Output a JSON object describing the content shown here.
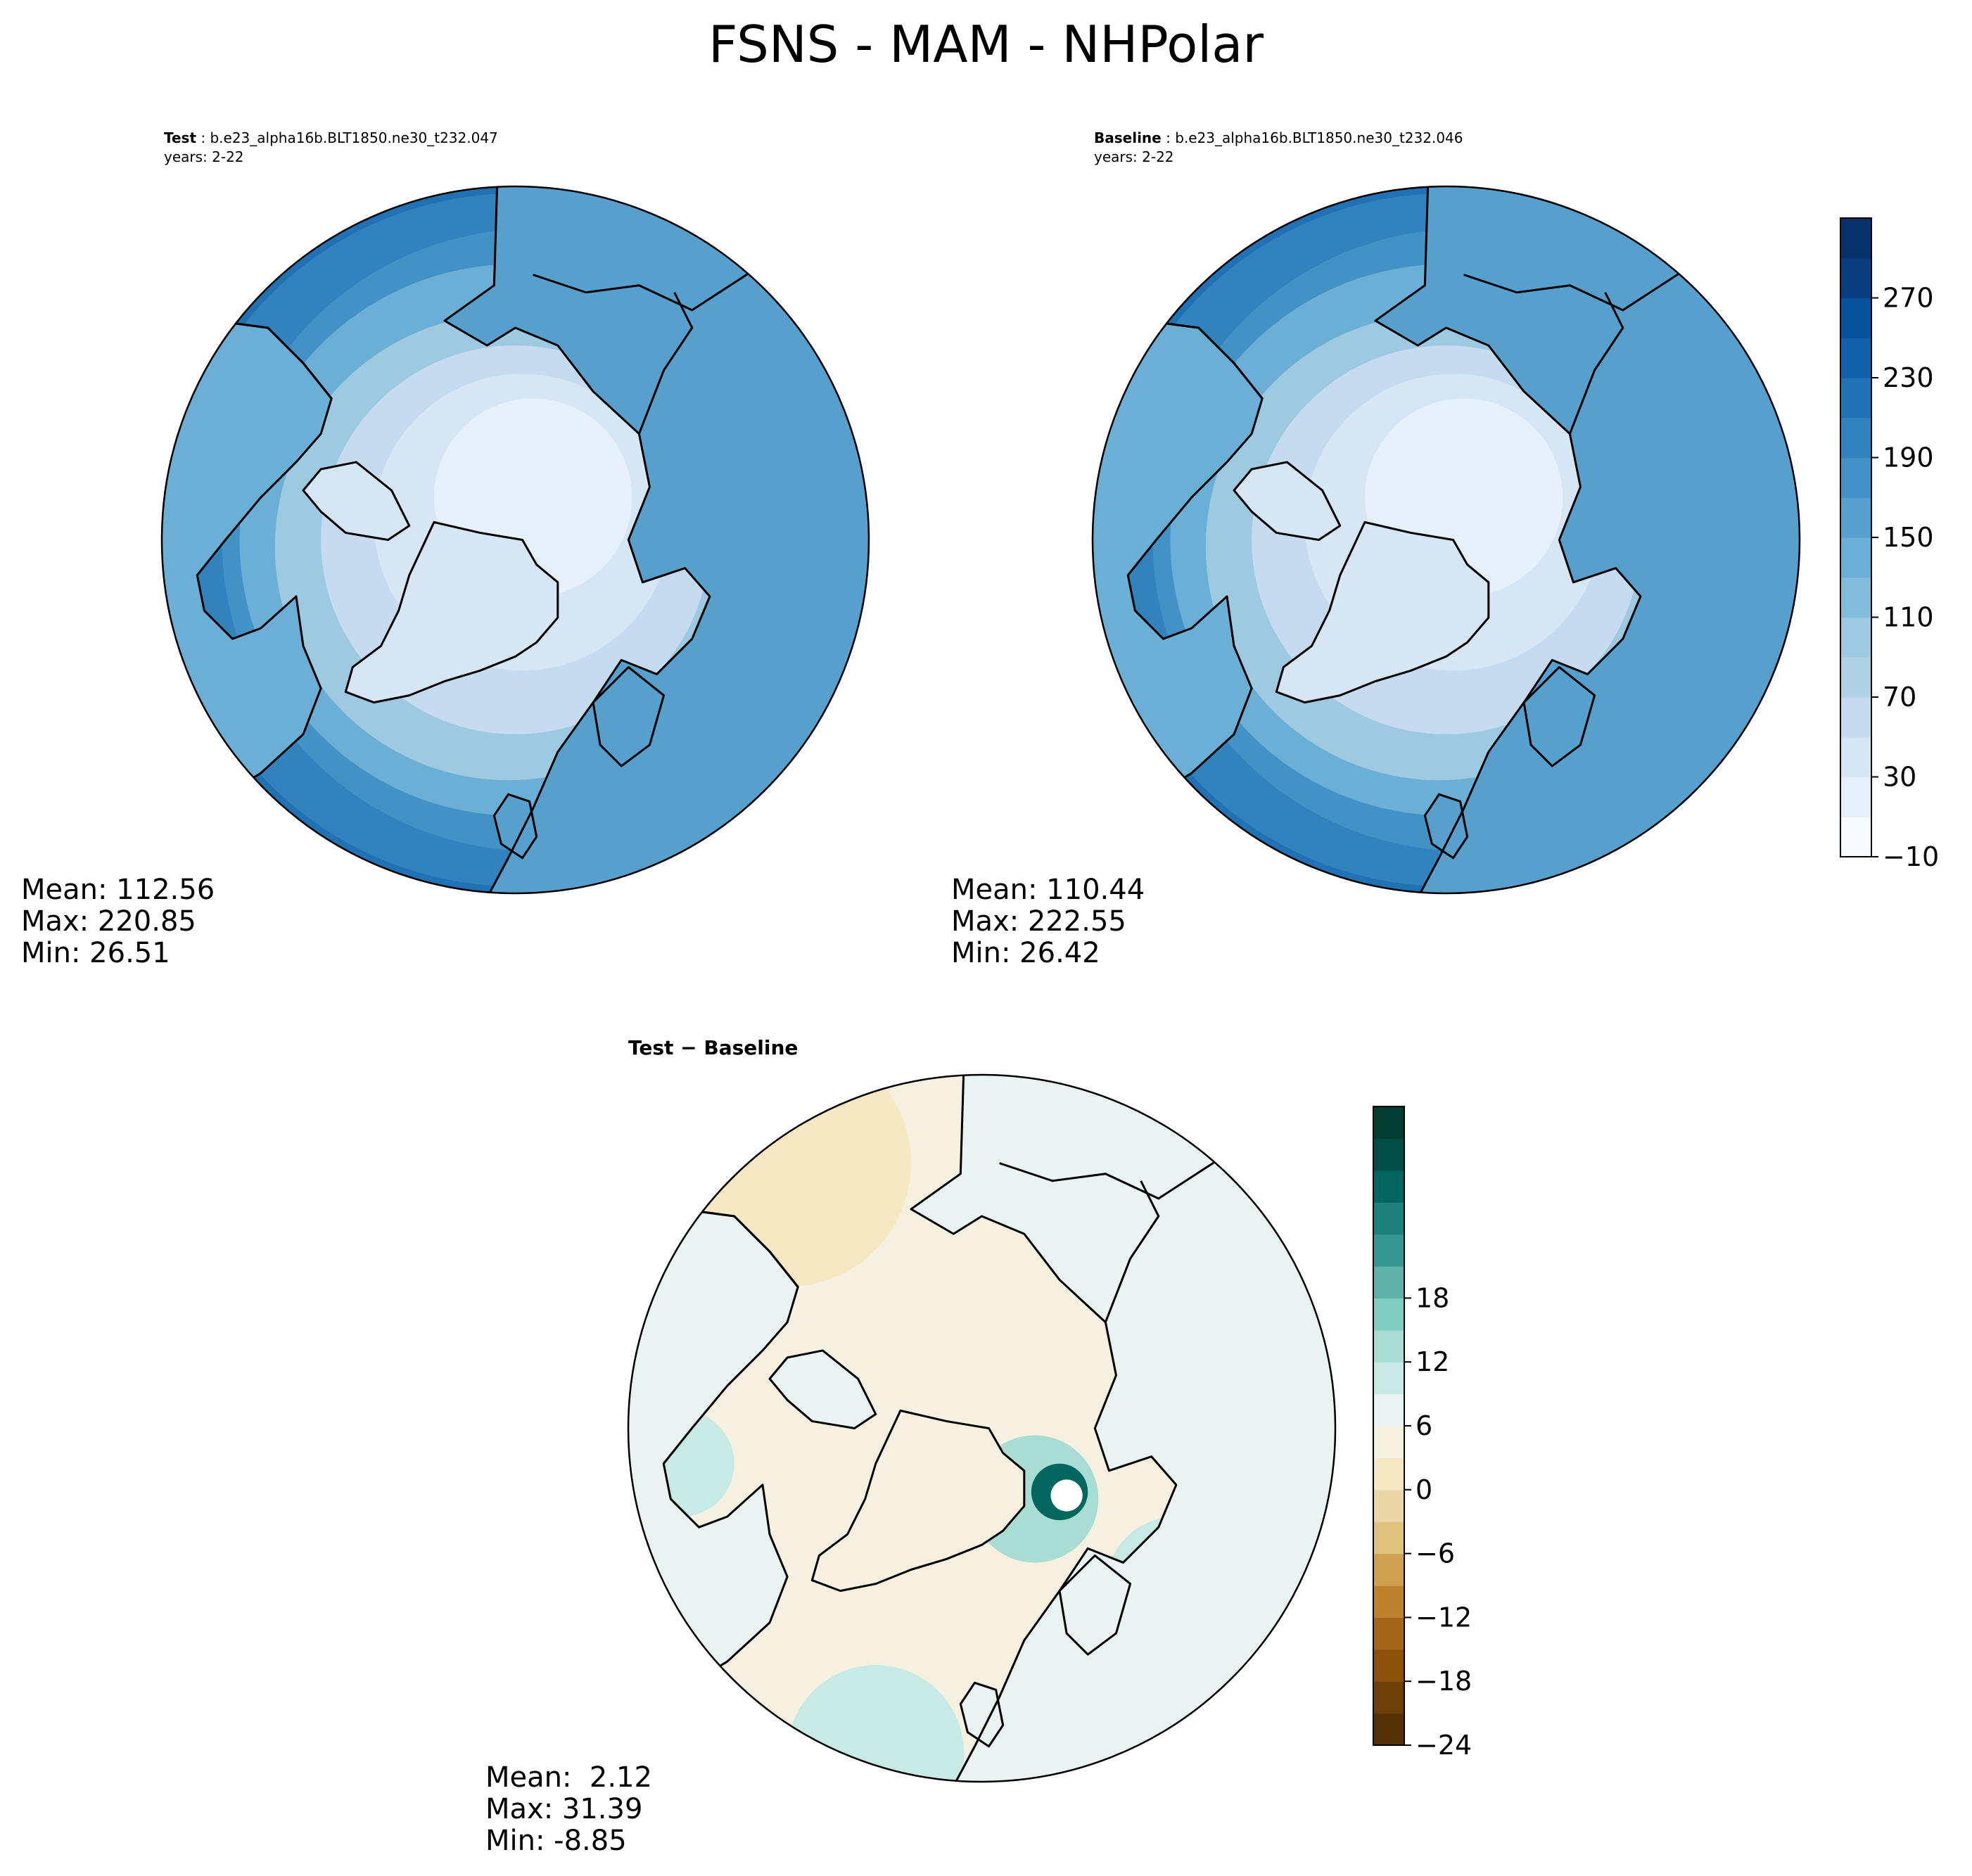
{
  "title": "FSNS - MAM - NHPolar",
  "panels": {
    "test": {
      "label_bold": "Test",
      "label_rest": " : b.e23_alpha16b.BLT1850.ne30_t232.047",
      "years": "years: 2-22",
      "stats": {
        "mean": "Mean: 112.56",
        "max": "Max: 220.85",
        "min": "Min: 26.51"
      }
    },
    "baseline": {
      "label_bold": "Baseline",
      "label_rest": " : b.e23_alpha16b.BLT1850.ne30_t232.046",
      "years": "years: 2-22",
      "stats": {
        "mean": "Mean: 110.44",
        "max": "Max: 222.55",
        "min": "Min: 26.42"
      }
    },
    "diff": {
      "label": "Test − Baseline",
      "stats": {
        "mean": "Mean:  2.12",
        "max": "Max: 31.39",
        "min": "Min: -8.85"
      }
    }
  },
  "colorbars": {
    "main": {
      "ticks": [
        "−10",
        "30",
        "70",
        "110",
        "150",
        "190",
        "230",
        "270"
      ],
      "colors": [
        "#f7fbff",
        "#e6f0fa",
        "#d6e6f4",
        "#c6dbef",
        "#b0d2e7",
        "#9ecae1",
        "#82bbdb",
        "#6baed6",
        "#57a0ce",
        "#4292c6",
        "#3282be",
        "#2171b5",
        "#1361a9",
        "#08519c",
        "#083d7f",
        "#08306b"
      ]
    },
    "diff": {
      "ticks": [
        "−24",
        "−18",
        "−12",
        "−6",
        "0",
        "6",
        "12",
        "18"
      ],
      "colors": [
        "#543005",
        "#6f3f08",
        "#8c510a",
        "#a4671a",
        "#bf812d",
        "#cfa050",
        "#dfc27d",
        "#ead6a6",
        "#f6e8c3",
        "#f5f0e0",
        "#e9f3f1",
        "#c7eae5",
        "#a9ddd4",
        "#80cdc1",
        "#5fb2a8",
        "#35978f",
        "#1c8178",
        "#01665e",
        "#004e45",
        "#003c30"
      ]
    }
  },
  "chart_data": [
    {
      "type": "heatmap",
      "projection": "north polar stereographic",
      "title": "Test : b.e23_alpha16b.BLT1850.ne30_t232.047",
      "subtitle": "years: 2-22",
      "field": "FSNS",
      "season": "MAM",
      "colormap": "Blues",
      "levels": [
        -10,
        10,
        30,
        50,
        70,
        90,
        110,
        130,
        150,
        170,
        190,
        210,
        230,
        250,
        270,
        290
      ],
      "colorbar_ticks": [
        -10,
        30,
        70,
        110,
        150,
        190,
        230,
        270
      ],
      "mean": 112.56,
      "max": 220.85,
      "min": 26.51
    },
    {
      "type": "heatmap",
      "projection": "north polar stereographic",
      "title": "Baseline : b.e23_alpha16b.BLT1850.ne30_t232.046",
      "subtitle": "years: 2-22",
      "field": "FSNS",
      "season": "MAM",
      "colormap": "Blues",
      "levels": [
        -10,
        10,
        30,
        50,
        70,
        90,
        110,
        130,
        150,
        170,
        190,
        210,
        230,
        250,
        270,
        290
      ],
      "colorbar_ticks": [
        -10,
        30,
        70,
        110,
        150,
        190,
        230,
        270
      ],
      "mean": 110.44,
      "max": 222.55,
      "min": 26.42
    },
    {
      "type": "heatmap",
      "projection": "north polar stereographic",
      "title": "Test − Baseline",
      "colormap": "BrBG",
      "levels": [
        -24,
        -21,
        -18,
        -15,
        -12,
        -9,
        -6,
        -3,
        0,
        3,
        6,
        9,
        12,
        15,
        18,
        21
      ],
      "colorbar_ticks": [
        -24,
        -18,
        -12,
        -6,
        0,
        6,
        12,
        18
      ],
      "mean": 2.12,
      "max": 31.39,
      "min": -8.85
    }
  ]
}
